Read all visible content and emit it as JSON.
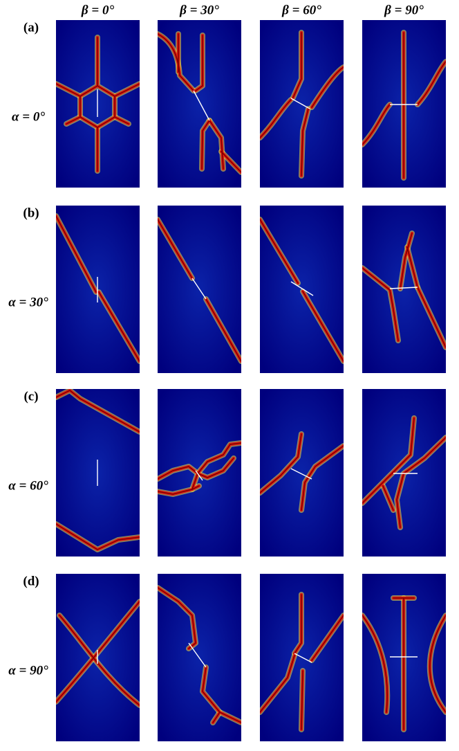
{
  "columns": [
    "β = 0°",
    "β = 30°",
    "β = 60°",
    "β = 90°"
  ],
  "rows": [
    {
      "letter": "(a)",
      "label": "α = 0°"
    },
    {
      "letter": "(b)",
      "label": "α = 30°"
    },
    {
      "letter": "(c)",
      "label": "α = 60°"
    },
    {
      "letter": "(d)",
      "label": "α = 90°"
    }
  ]
}
